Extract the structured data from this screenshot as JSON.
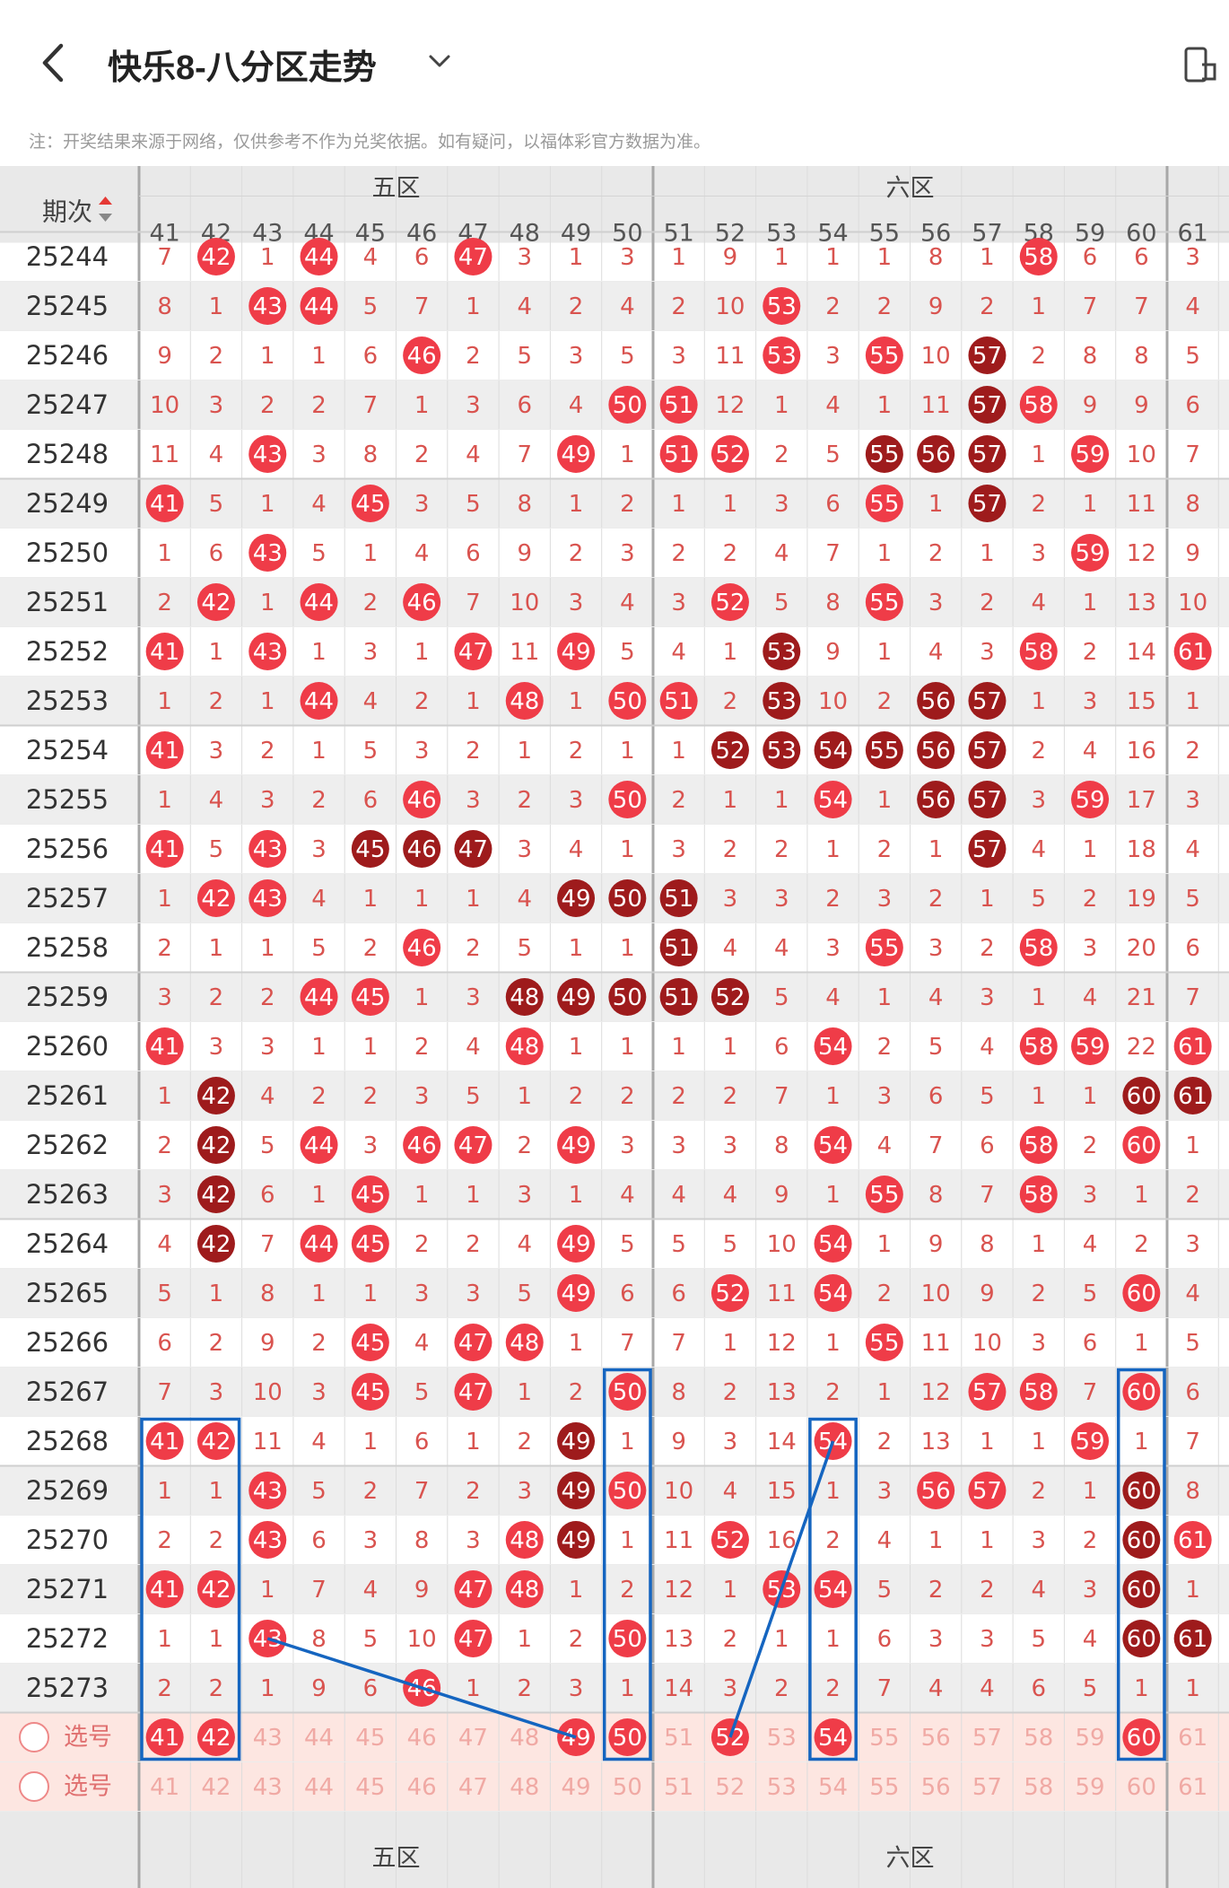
{
  "header": {
    "title": "快乐8-八分区走势",
    "note": "注：开奖结果来源于网络，仅供参考不作为兑奖依据。如有疑问，以福体彩官方数据为准。"
  },
  "table": {
    "period_header": "期次",
    "zones": [
      {
        "name": "五区",
        "numbers": [
          41,
          42,
          43,
          44,
          45,
          46,
          47,
          48,
          49,
          50
        ]
      },
      {
        "name": "六区",
        "numbers": [
          51,
          52,
          53,
          54,
          55,
          56,
          57,
          58,
          59,
          60
        ]
      }
    ],
    "partial_column": 61,
    "periods": [
      "25244",
      "25245",
      "25246",
      "25247",
      "25248",
      "25249",
      "25250",
      "25251",
      "25252",
      "25253",
      "25254",
      "25255",
      "25256",
      "25257",
      "25258",
      "25259",
      "25260",
      "25261",
      "25262",
      "25263",
      "25264",
      "25265",
      "25266",
      "25267",
      "25268",
      "25269",
      "25270",
      "25271",
      "25272",
      "25273"
    ],
    "rows": [
      "7 H42 1 H44 4 6 H47 3 1 3 1 9 1 1 1 8 1 H58 6 6 3",
      "8 1 H43 H44 5 7 1 4 2 4 2 10 H53 2 2 9 2 1 7 7 4",
      "9 2 1 1 6 H46 2 5 3 5 3 11 H53 3 H55 10 D57 2 8 8 5",
      "10 3 2 2 7 1 3 6 4 H50 H51 12 1 4 1 11 D57 H58 9 9 6",
      "11 4 H43 3 8 2 4 7 H49 1 H51 H52 2 5 D55 D56 D57 1 H59 10 7",
      "H41 5 1 4 H45 3 5 8 1 2 1 1 3 6 H55 1 D57 2 1 11 8",
      "1 6 H43 5 1 4 6 9 2 3 2 2 4 7 1 2 1 3 H59 12 9",
      "2 H42 1 H44 2 H46 7 10 3 4 3 H52 5 8 H55 3 2 4 1 13 10",
      "H41 1 H43 1 3 1 H47 11 H49 5 4 1 D53 9 1 4 3 H58 2 14 H61",
      "1 2 1 H44 4 2 1 H48 1 H50 H51 2 D53 10 2 D56 D57 1 3 15 1",
      "H41 3 2 1 5 3 2 1 2 1 1 D52 D53 D54 D55 D56 D57 2 4 16 2",
      "1 4 3 2 6 H46 3 2 3 H50 2 1 1 H54 1 D56 D57 3 H59 17 3",
      "H41 5 H43 3 D45 D46 D47 3 4 1 3 2 2 1 2 1 D57 4 1 18 4",
      "1 H42 H43 4 1 1 1 4 D49 D50 D51 3 3 2 3 2 1 5 2 19 5",
      "2 1 1 5 2 H46 2 5 1 1 D51 4 4 3 H55 3 2 H58 3 20 6",
      "3 2 2 H44 H45 1 3 D48 D49 D50 D51 D52 5 4 1 4 3 1 4 21 7",
      "H41 3 3 1 1 2 4 H48 1 1 1 1 6 H54 2 5 4 H58 H59 22 H61",
      "1 D42 4 2 2 3 5 1 2 2 2 2 7 1 3 6 5 1 1 D60 D61",
      "2 D42 5 H44 3 H46 H47 2 H49 3 3 3 8 H54 4 7 6 H58 2 H60 1",
      "3 D42 6 1 H45 1 1 3 1 4 4 4 9 1 H55 8 7 H58 3 1 2",
      "4 D42 7 H44 H45 2 2 4 H49 5 5 5 10 H54 1 9 8 1 4 2 3",
      "5 1 8 1 1 3 3 5 H49 6 6 H52 11 H54 2 10 9 2 5 H60 4",
      "6 2 9 2 H45 4 H47 H48 1 7 7 1 12 1 H55 11 10 3 6 1 5",
      "7 3 10 3 H45 5 H47 1 2 H50 8 2 13 2 1 12 H57 H58 7 H60 6",
      "H41 H42 11 4 1 6 1 2 D49 1 9 3 14 H54 2 13 1 1 H59 1 7",
      "1 1 H43 5 2 7 2 3 D49 H50 10 4 15 1 3 H56 H57 2 1 D60 8",
      "2 2 H43 6 3 8 3 H48 D49 1 11 H52 16 2 4 1 1 3 2 D60 H61",
      "H41 H42 1 7 4 9 H47 H48 1 2 12 1 H53 H54 5 2 2 4 3 D60 1",
      "1 1 H43 8 5 10 H47 1 2 H50 13 2 1 1 6 3 3 5 4 D60 D61",
      "2 2 1 9 6 H46 1 2 3 1 14 3 2 2 7 4 4 6 5 1 1"
    ],
    "pick_label": "选号",
    "pick_selected": [
      41,
      42,
      49,
      50,
      52,
      54,
      60
    ]
  },
  "colors": {
    "hit": "#ef3c48",
    "repeat": "#9e1b1c",
    "miss_text": "#d9534f",
    "zone_border": "#a8a8a8",
    "header_bg": "#e9e9e9",
    "band_bg": "#eeeeee",
    "pick_row_bg": "#fde6e1",
    "pick_number": "#f0a9a4",
    "annotation": "#1565c0"
  },
  "icons": [
    "chevron-left-icon",
    "chevron-down-icon",
    "screen-share-icon",
    "sort-arrows-icon",
    "circle-checkbox-icon"
  ]
}
